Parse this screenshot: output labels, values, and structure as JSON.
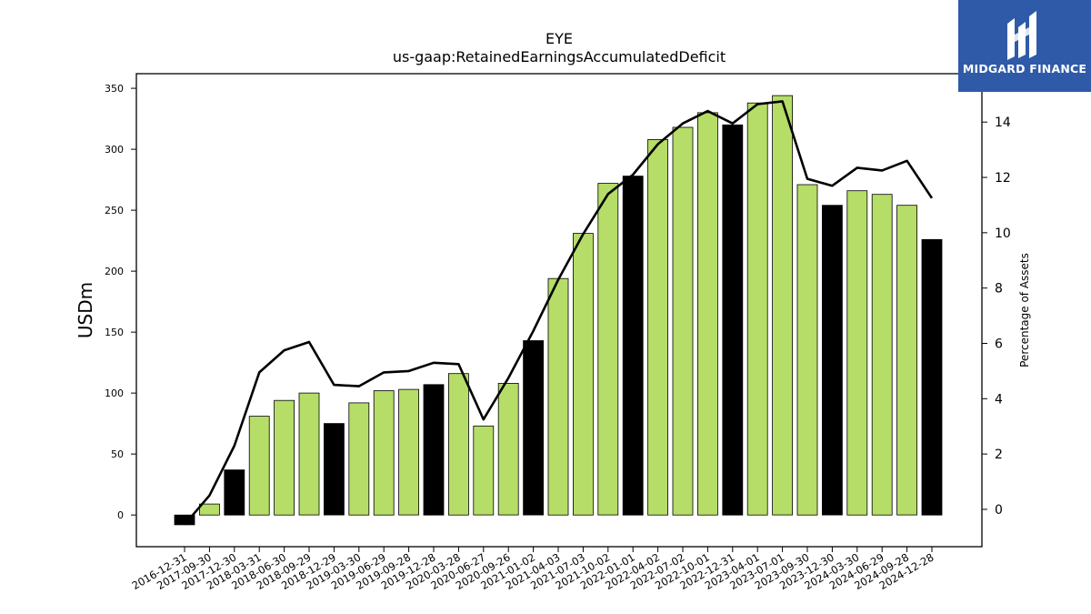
{
  "chart_data": {
    "type": "bar",
    "title": "EYE",
    "subtitle": "us-gaap:RetainedEarningsAccumulatedDeficit",
    "ylabel": "USDm",
    "y2label": "Percentage of Assets",
    "ylim": [
      -26,
      362
    ],
    "y2lim": [
      -1.35,
      15.75
    ],
    "yticks": [
      0,
      50,
      100,
      150,
      200,
      250,
      300,
      350
    ],
    "y2ticks": [
      0,
      2,
      4,
      6,
      8,
      10,
      12,
      14
    ],
    "categories": [
      "2016-12-31",
      "2017-09-30",
      "2017-12-30",
      "2018-03-31",
      "2018-06-30",
      "2018-09-29",
      "2018-12-29",
      "2019-03-30",
      "2019-06-29",
      "2019-09-28",
      "2019-12-28",
      "2020-03-28",
      "2020-06-27",
      "2020-09-26",
      "2021-01-02",
      "2021-04-03",
      "2021-07-03",
      "2021-10-02",
      "2022-01-01",
      "2022-04-02",
      "2022-07-02",
      "2022-10-01",
      "2022-12-31",
      "2023-04-01",
      "2023-07-01",
      "2023-09-30",
      "2023-12-30",
      "2024-03-30",
      "2024-06-29",
      "2024-09-28",
      "2024-12-28"
    ],
    "values": [
      -8,
      9,
      37,
      81,
      94,
      100,
      75,
      92,
      102,
      103,
      107,
      116,
      73,
      108,
      143,
      194,
      231,
      272,
      278,
      308,
      318,
      330,
      320,
      338,
      344,
      271,
      254,
      266,
      263,
      254,
      226
    ],
    "bar_colors": [
      "#000000",
      "#b5dd68",
      "#000000",
      "#b5dd68",
      "#b5dd68",
      "#b5dd68",
      "#000000",
      "#b5dd68",
      "#b5dd68",
      "#b5dd68",
      "#000000",
      "#b5dd68",
      "#b5dd68",
      "#b5dd68",
      "#000000",
      "#b5dd68",
      "#b5dd68",
      "#b5dd68",
      "#000000",
      "#b5dd68",
      "#b5dd68",
      "#b5dd68",
      "#000000",
      "#b5dd68",
      "#b5dd68",
      "#b5dd68",
      "#000000",
      "#b5dd68",
      "#b5dd68",
      "#b5dd68",
      "#000000"
    ],
    "series": [
      {
        "axis": "right",
        "values": [
          -0.55,
          0.5,
          2.3,
          4.95,
          5.75,
          6.05,
          4.5,
          4.45,
          4.95,
          5.0,
          5.3,
          5.25,
          3.25,
          4.75,
          6.45,
          8.3,
          9.95,
          11.4,
          12.1,
          13.2,
          13.95,
          14.4,
          13.95,
          14.65,
          14.75,
          11.95,
          11.7,
          12.35,
          12.25,
          12.6,
          11.25
        ],
        "color": "#000000"
      }
    ],
    "accent_color": "#b5dd68"
  },
  "logo": {
    "text": "MIDGARD FINANCE",
    "color": "#2f5aa8"
  }
}
